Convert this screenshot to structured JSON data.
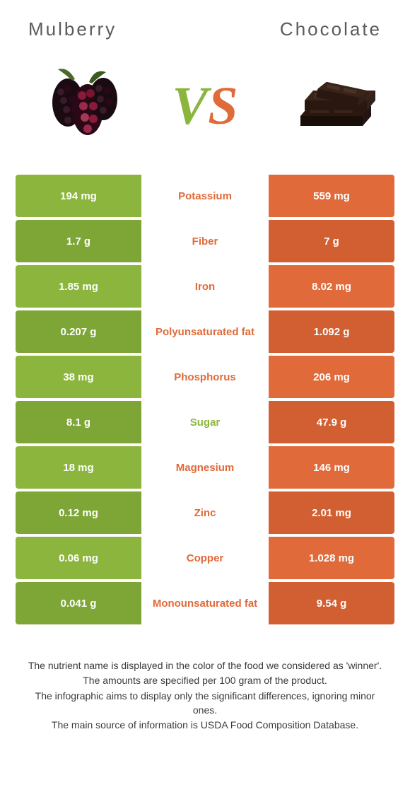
{
  "colors": {
    "left": "#8bb53d",
    "right": "#e06a3a",
    "left_dark": "#7da636",
    "right_dark": "#d25f32",
    "header_text": "#5a5a5a",
    "footer_text": "#3a3a3a",
    "background": "#ffffff"
  },
  "header": {
    "left_title": "Mulberry",
    "right_title": "Chocolate"
  },
  "vs": {
    "v": "V",
    "s": "S"
  },
  "rows": [
    {
      "label": "Potassium",
      "left": "194 mg",
      "right": "559 mg",
      "winner": "right"
    },
    {
      "label": "Fiber",
      "left": "1.7 g",
      "right": "7 g",
      "winner": "right"
    },
    {
      "label": "Iron",
      "left": "1.85 mg",
      "right": "8.02 mg",
      "winner": "right"
    },
    {
      "label": "Polyunsaturated fat",
      "left": "0.207 g",
      "right": "1.092 g",
      "winner": "right"
    },
    {
      "label": "Phosphorus",
      "left": "38 mg",
      "right": "206 mg",
      "winner": "right"
    },
    {
      "label": "Sugar",
      "left": "8.1 g",
      "right": "47.9 g",
      "winner": "left"
    },
    {
      "label": "Magnesium",
      "left": "18 mg",
      "right": "146 mg",
      "winner": "right"
    },
    {
      "label": "Zinc",
      "left": "0.12 mg",
      "right": "2.01 mg",
      "winner": "right"
    },
    {
      "label": "Copper",
      "left": "0.06 mg",
      "right": "1.028 mg",
      "winner": "right"
    },
    {
      "label": "Monounsaturated fat",
      "left": "0.041 g",
      "right": "9.54 g",
      "winner": "right"
    }
  ],
  "footer": {
    "l1": "The nutrient name is displayed in the color of the food we considered as 'winner'.",
    "l2": "The amounts are specified per 100 gram of the product.",
    "l3": "The infographic aims to display only the significant differences, ignoring minor ones.",
    "l4": "The main source of information is USDA Food Composition Database."
  }
}
